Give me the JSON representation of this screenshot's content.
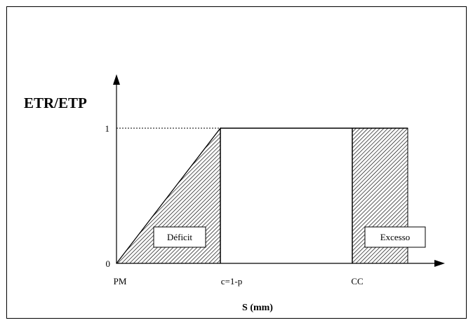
{
  "diagram": {
    "y_label": "ETR/ETP",
    "x_label": "S (mm)",
    "y_ticks": {
      "top": "1",
      "zero": "0"
    },
    "x_ticks": {
      "pm": "PM",
      "c": "c=1-p",
      "cc": "CC"
    },
    "deficit_label": "Déficit",
    "excess_label": "Excesso"
  }
}
